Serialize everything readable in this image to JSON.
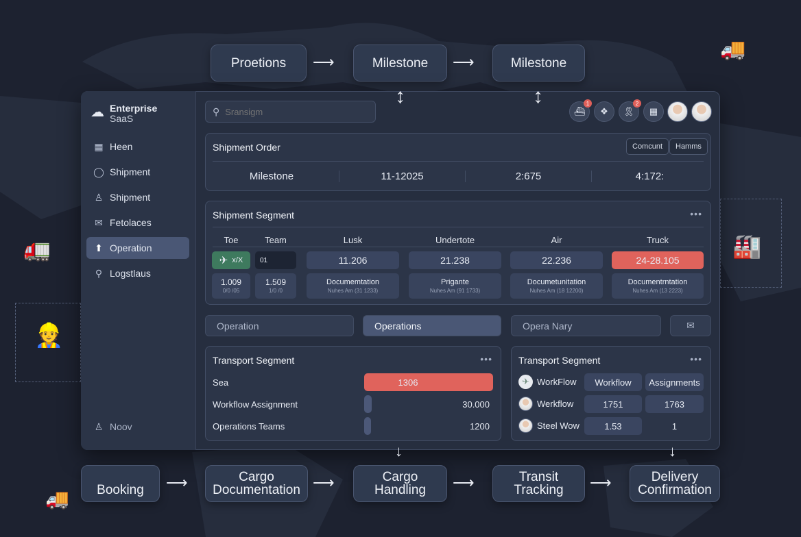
{
  "flow_top": [
    "Proetions",
    "Milestone",
    "Milestone"
  ],
  "flow_bottom": [
    "Booking",
    "Cargo Documentation",
    "Cargo Handling",
    "Transit Tracking",
    "Delivery Confirmation"
  ],
  "brand": {
    "line1": "Enterprise",
    "line2": "SaaS",
    "icon": "cloud-logo-icon"
  },
  "sidebar": {
    "items": [
      {
        "label": "Heen",
        "icon": "calendar-icon"
      },
      {
        "label": "Shipment",
        "icon": "chat-icon"
      },
      {
        "label": "Shipment",
        "icon": "user-icon"
      },
      {
        "label": "Fetolaces",
        "icon": "mail-icon"
      },
      {
        "label": "Operation",
        "icon": "arrow-up-icon",
        "active": true
      },
      {
        "label": "Logstlaus",
        "icon": "search-key-icon"
      }
    ],
    "footer": "Noov"
  },
  "search": {
    "placeholder": "Sransigm"
  },
  "header_icons": [
    {
      "icon": "ship-icon",
      "badge": "1"
    },
    {
      "icon": "network-icon"
    },
    {
      "icon": "ribbon-icon",
      "badge": "2"
    },
    {
      "icon": "calendar-icon"
    }
  ],
  "shipment_order": {
    "title": "Shipment Order",
    "buttons": [
      "Comcunt",
      "Hamms"
    ],
    "values": [
      "Milestone",
      "11-12025",
      "2:675",
      "4:172:"
    ]
  },
  "shipment_segment": {
    "title": "Shipment Segment",
    "headers": [
      "Toe",
      "Team",
      "Lusk",
      "Undertote",
      "Air",
      "Truck"
    ],
    "row1": [
      "x/X",
      "01",
      "11.206",
      "21.238",
      "22.236",
      "24-28.105"
    ],
    "row2": [
      {
        "main": "1.009",
        "sub": "0/0 /05"
      },
      {
        "main": "1.509",
        "sub": "1/0 /0"
      },
      {
        "main": "Documemtation",
        "sub": "Nuhes Am (31 1233)"
      },
      {
        "main": "Prigante",
        "sub": "Nuhes Am (91 1733)"
      },
      {
        "main": "Documetunitation",
        "sub": "Nuhes Am (18 12200)"
      },
      {
        "main": "Documentrntation",
        "sub": "Nuhes Am (13 2223)"
      }
    ]
  },
  "tabs": [
    "Operation",
    "Operations",
    "Opera Nary"
  ],
  "transport_left": {
    "title": "Transport Segment",
    "rows": [
      {
        "label": "Sea",
        "value": "1306",
        "fill": 1.0,
        "color": "#e0635c"
      },
      {
        "label": "Workflow Assignment",
        "value": "30.000",
        "fill": 0.06,
        "color": "#4c5878"
      },
      {
        "label": "Operations Teams",
        "value": "1200",
        "fill": 0.04,
        "color": "#4c5878"
      }
    ]
  },
  "transport_right": {
    "title": "Transport Segment",
    "rows": [
      {
        "label": "WorkFlow",
        "c1": "Workflow",
        "c2": "Assignments"
      },
      {
        "label": "Werkflow",
        "c1": "1751",
        "c2": "1763"
      },
      {
        "label": "Steel Wow",
        "c1": "1.53",
        "c2": "1"
      }
    ]
  },
  "colors": {
    "accent_red": "#e0635c",
    "accent_green": "#3e7a5e",
    "panel": "#2c3548"
  }
}
